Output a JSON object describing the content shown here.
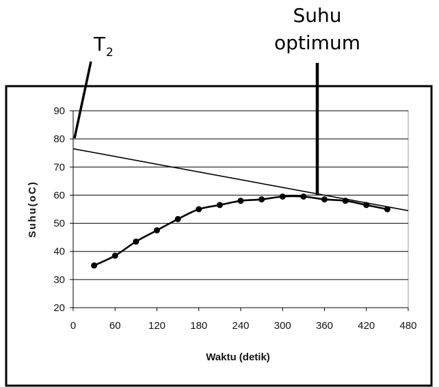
{
  "chart_data": {
    "type": "line",
    "xlabel": "Waktu (detik)",
    "ylabel": "Suhu(oC)",
    "xlim": [
      0,
      480
    ],
    "ylim": [
      20,
      90
    ],
    "x_ticks": [
      0,
      60,
      120,
      180,
      240,
      300,
      360,
      420,
      480
    ],
    "y_ticks": [
      20,
      30,
      40,
      50,
      60,
      70,
      80,
      90
    ],
    "grid": "horizontal",
    "series": [
      {
        "x": [
          30,
          60,
          90,
          120,
          150,
          180,
          210,
          240,
          270,
          300,
          330,
          360,
          390,
          420,
          450
        ],
        "y": [
          35,
          38.5,
          43.5,
          47.5,
          51.5,
          55,
          56.5,
          58,
          58.5,
          59.5,
          59.5,
          58.5,
          58,
          56.5,
          55
        ]
      }
    ],
    "tangent_line": {
      "x": [
        0,
        480
      ],
      "y": [
        76.5,
        54.5
      ]
    },
    "annotations": {
      "t2_label": "T",
      "t2_subscript": "2",
      "optimum_line1": "Suhu",
      "optimum_line2": "optimum"
    }
  }
}
